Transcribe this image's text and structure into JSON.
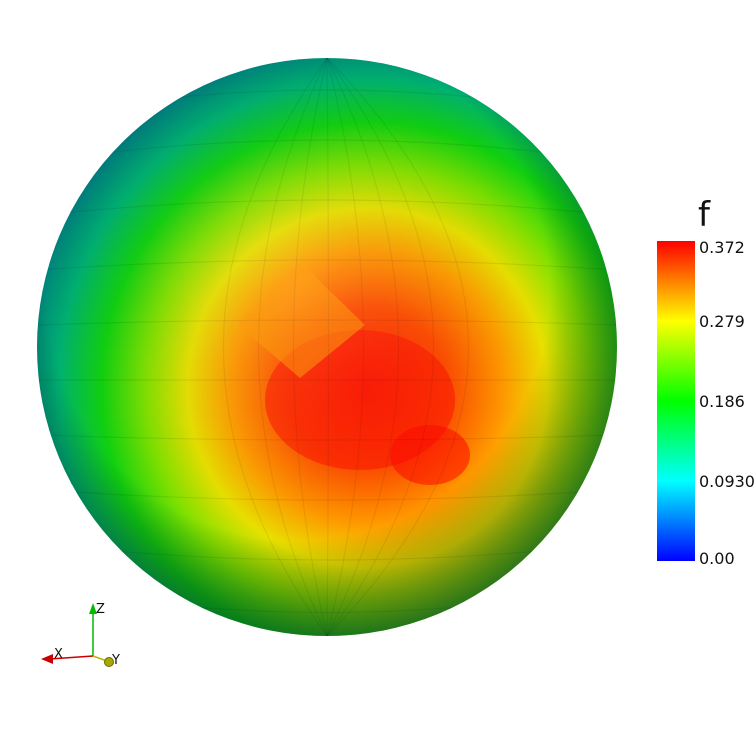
{
  "scalar_bar": {
    "title": "f",
    "range": [
      0.0,
      0.372
    ],
    "ticks": [
      {
        "value": 0.372,
        "label": "0.372"
      },
      {
        "value": 0.279,
        "label": "0.279"
      },
      {
        "value": 0.186,
        "label": "0.186"
      },
      {
        "value": 0.093,
        "label": "0.0930"
      },
      {
        "value": 0.0,
        "label": "0.00"
      }
    ]
  },
  "orientation_axes": {
    "x_label": "X",
    "y_label": "Y",
    "z_label": "Z",
    "colors": {
      "x": "#cc0000",
      "y": "#b8b800",
      "z": "#00bb00"
    }
  },
  "colormap": {
    "name": "rainbow",
    "low_color": "#0000ff",
    "high_color": "#ff0000"
  }
}
